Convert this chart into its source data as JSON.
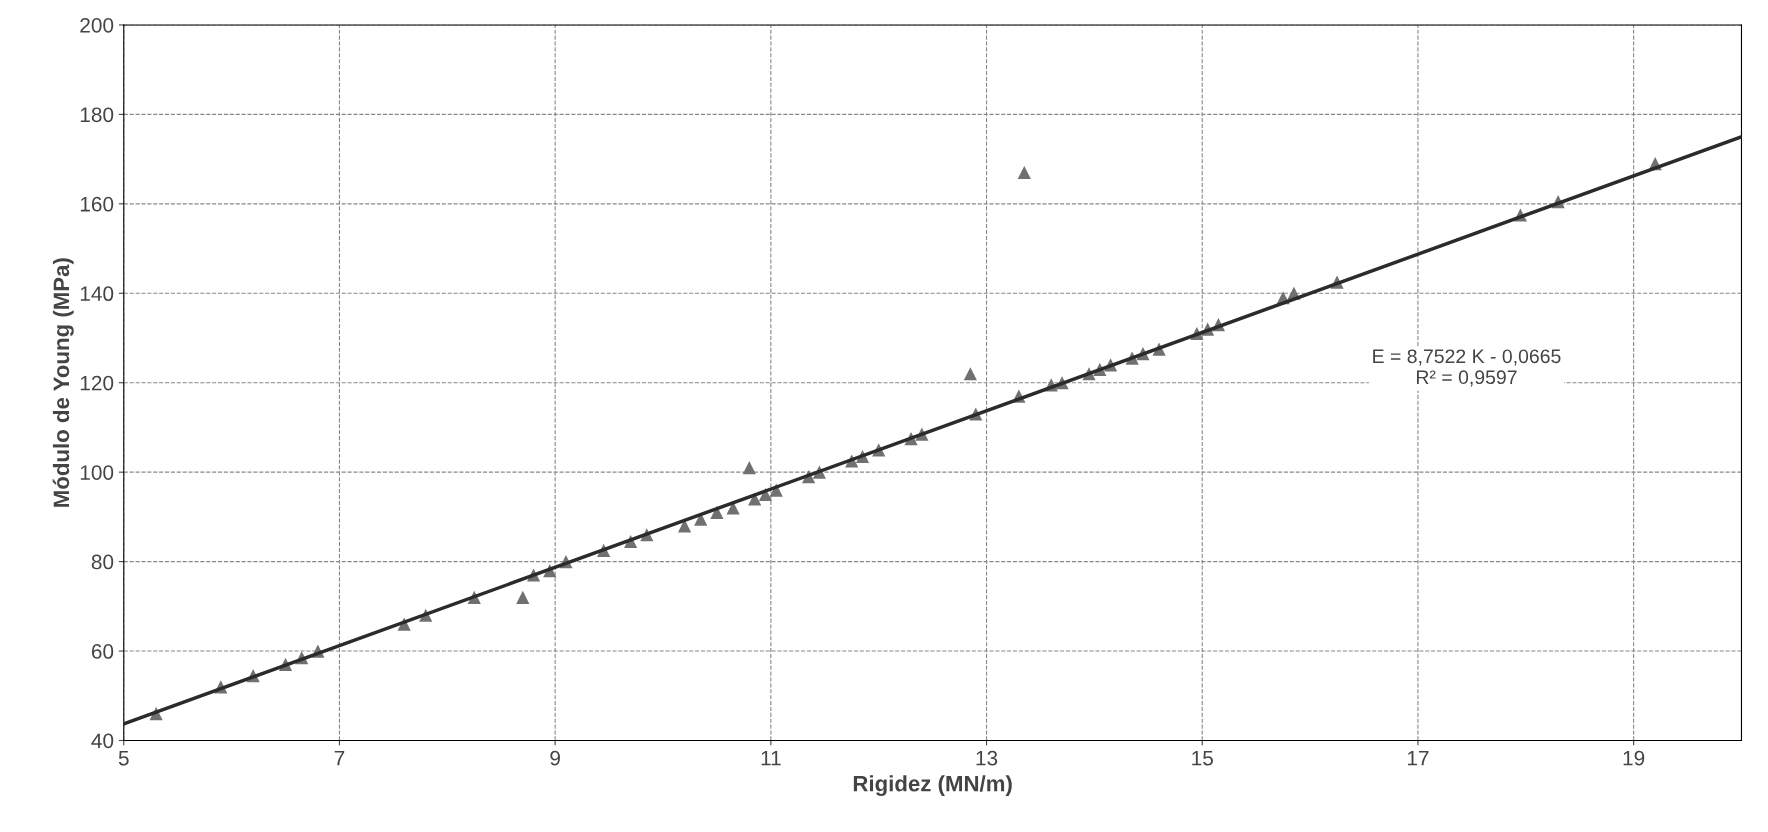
{
  "chart_data": {
    "type": "scatter",
    "xlabel": "Rigidez (MN/m)",
    "ylabel": "Módulo de Young (MPa)",
    "xlim": [
      5,
      20
    ],
    "xticks": [
      5,
      7,
      9,
      11,
      13,
      15,
      17,
      19
    ],
    "ylim": [
      40,
      200
    ],
    "yticks": [
      40,
      60,
      80,
      100,
      120,
      140,
      160,
      180,
      200
    ],
    "grid": true,
    "marker": "triangle",
    "series": [
      {
        "color": "#707070",
        "x": [
          5.3,
          5.9,
          6.2,
          6.5,
          6.65,
          6.8,
          7.6,
          7.8,
          8.25,
          8.7,
          8.8,
          8.95,
          9.1,
          9.45,
          9.7,
          9.85,
          10.2,
          10.35,
          10.5,
          10.65,
          10.8,
          10.85,
          10.95,
          11.05,
          11.35,
          11.45,
          11.75,
          11.85,
          12.0,
          12.3,
          12.4,
          12.85,
          12.9,
          13.3,
          13.35,
          13.6,
          13.7,
          13.95,
          14.05,
          14.15,
          14.35,
          14.45,
          14.6,
          14.95,
          15.05,
          15.15,
          15.75,
          15.85,
          16.25,
          17.95,
          18.3,
          19.2
        ],
        "values": [
          46,
          52,
          54.5,
          57,
          58.5,
          60,
          66,
          68,
          72,
          72,
          77,
          78,
          80,
          82.5,
          84.5,
          86,
          88,
          89.5,
          91,
          92,
          101,
          94,
          95,
          96,
          99,
          100,
          102.5,
          103.5,
          105,
          107.5,
          108.5,
          122,
          113,
          117,
          167,
          119.5,
          120,
          122,
          123,
          124,
          125.5,
          126.5,
          127.5,
          131,
          132,
          133,
          139,
          140,
          142.5,
          157.5,
          160.5,
          169
        ]
      },
      {
        "type": "line",
        "color": "#2b2b2b",
        "marker": "none",
        "x": [
          5,
          20
        ],
        "values": [
          43.7,
          175
        ]
      }
    ],
    "annotations": [
      "E = 8,7522 K - 0,0665\nR² = 0,9597"
    ]
  }
}
